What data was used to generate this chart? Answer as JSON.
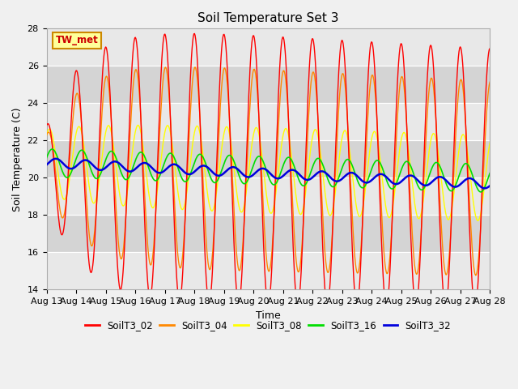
{
  "title": "Soil Temperature Set 3",
  "xlabel": "Time",
  "ylabel": "Soil Temperature (C)",
  "ylim": [
    14,
    28
  ],
  "yticks": [
    14,
    16,
    18,
    20,
    22,
    24,
    26,
    28
  ],
  "n_days": 15,
  "start_day": 13,
  "annotation": "TW_met",
  "colors": {
    "SoilT3_02": "#ff0000",
    "SoilT3_04": "#ff8800",
    "SoilT3_08": "#ffff00",
    "SoilT3_16": "#00dd00",
    "SoilT3_32": "#0000dd"
  },
  "band_colors": [
    "#e8e8e8",
    "#d4d4d4"
  ],
  "title_fontsize": 11,
  "label_fontsize": 9,
  "tick_fontsize": 8
}
